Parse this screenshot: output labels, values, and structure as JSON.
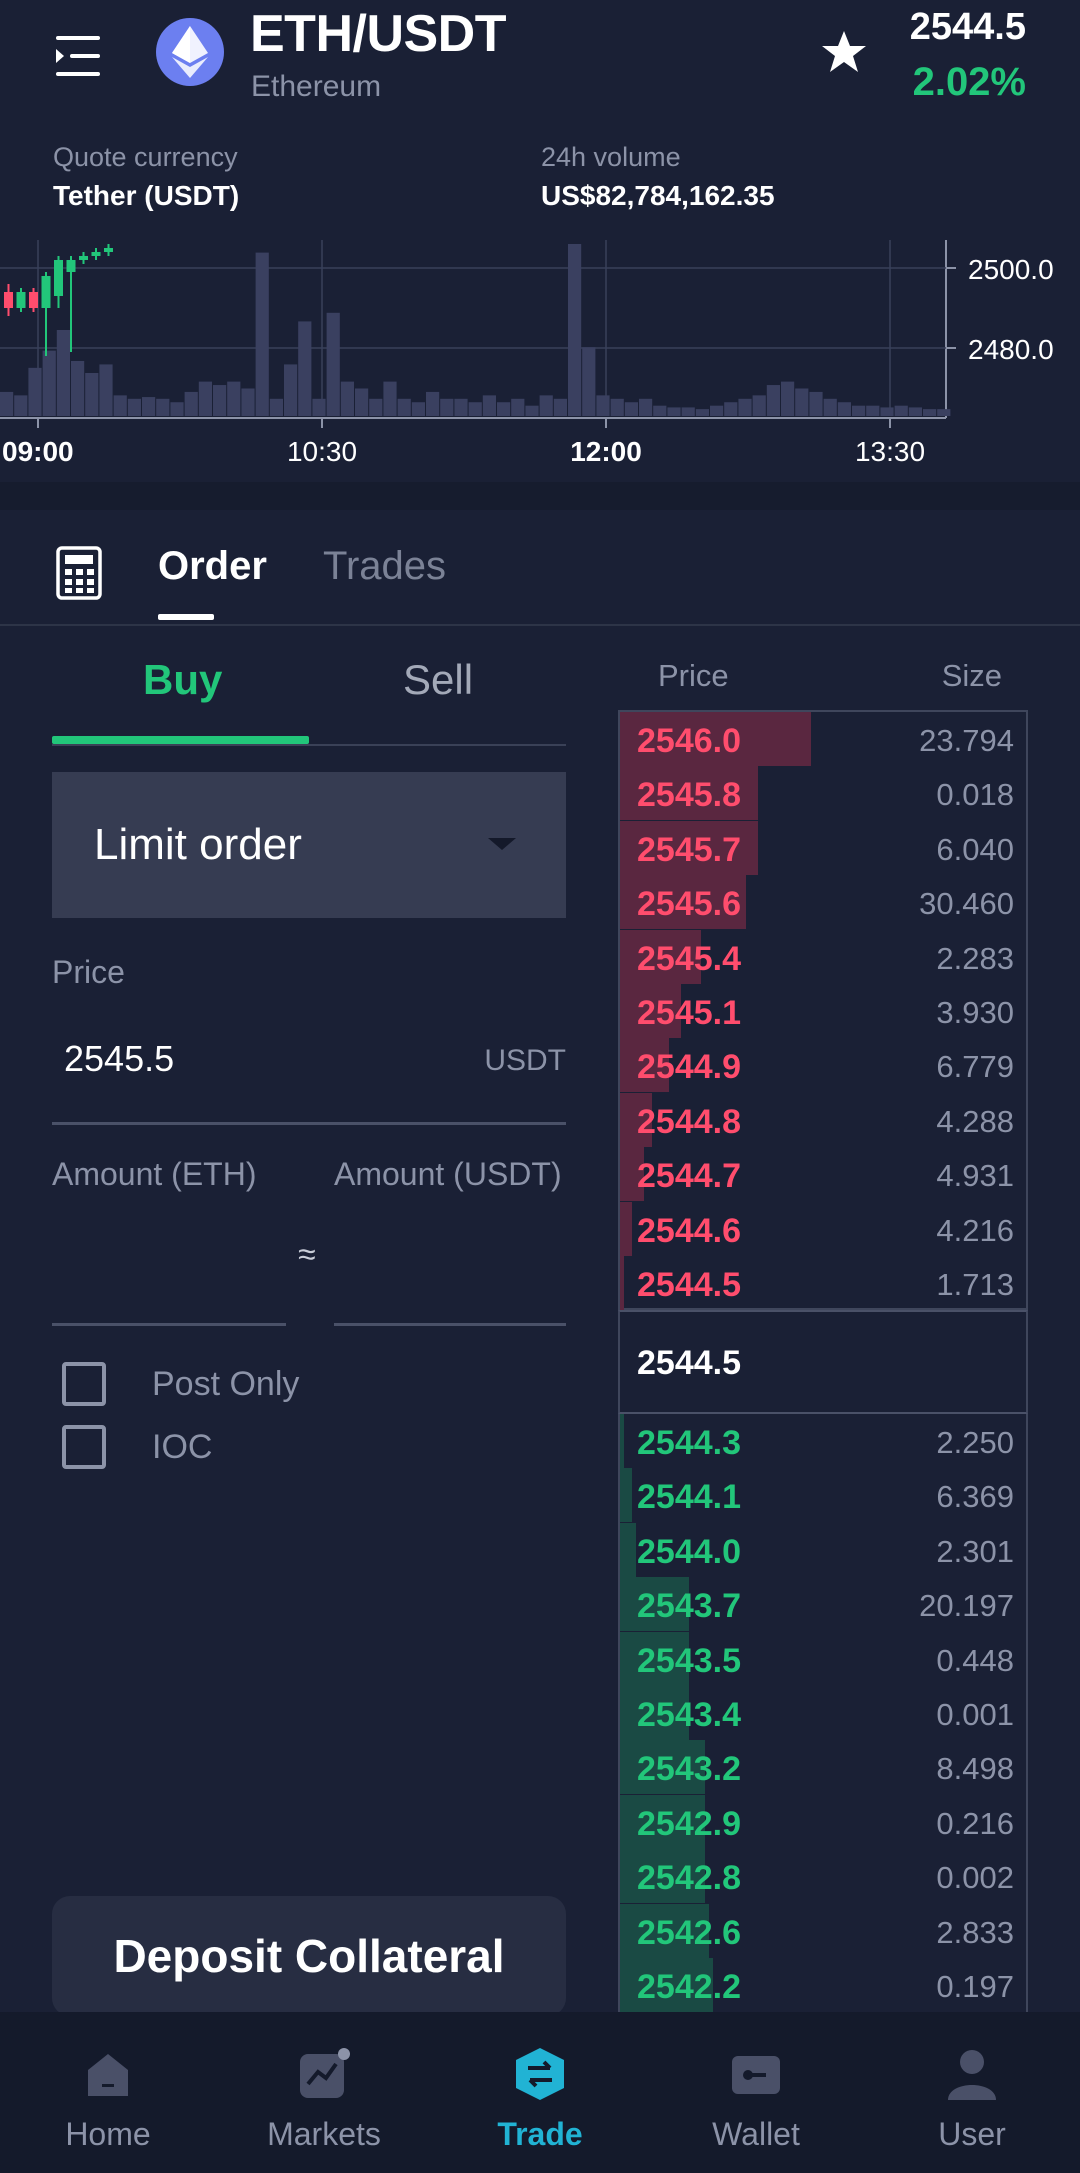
{
  "header": {
    "pair": "ETH/USDT",
    "asset_name": "Ethereum",
    "last_price": "2544.5",
    "change_pct": "2.02%",
    "icons": {
      "menu": "menu-icon",
      "logo": "ethereum-logo-icon",
      "favorite": "star-icon"
    }
  },
  "info": {
    "quote_label": "Quote currency",
    "quote_value": "Tether (USDT)",
    "volume_label": "24h volume",
    "volume_value": "US$82,784,162.35"
  },
  "chart_data": {
    "type": "bar",
    "x_ticks": [
      "09:00",
      "10:30",
      "12:00",
      "13:30"
    ],
    "bold_x_ticks": [
      "09:00",
      "12:00"
    ],
    "y_ticks": [
      "2500.0",
      "2480.0"
    ],
    "y_tick_values": [
      2500,
      2480
    ],
    "ylim": [
      2463,
      2507
    ],
    "candles": [
      {
        "o": 2494,
        "c": 2490,
        "h": 2496,
        "l": 2488
      },
      {
        "o": 2490,
        "c": 2494,
        "h": 2495,
        "l": 2489
      },
      {
        "o": 2494,
        "c": 2490,
        "h": 2495,
        "l": 2489
      },
      {
        "o": 2490,
        "c": 2498,
        "h": 2499,
        "l": 2478
      },
      {
        "o": 2493,
        "c": 2502,
        "h": 2503,
        "l": 2490
      },
      {
        "o": 2499,
        "c": 2502,
        "h": 2503,
        "l": 2479
      },
      {
        "o": 2502,
        "c": 2503,
        "h": 2504,
        "l": 2501
      },
      {
        "o": 2503,
        "c": 2504,
        "h": 2505,
        "l": 2502
      },
      {
        "o": 2504,
        "c": 2505,
        "h": 2506,
        "l": 2503
      }
    ],
    "volumes": [
      0.14,
      0.12,
      0.28,
      0.38,
      0.5,
      0.32,
      0.25,
      0.3,
      0.12,
      0.1,
      0.11,
      0.1,
      0.08,
      0.14,
      0.2,
      0.18,
      0.2,
      0.16,
      0.95,
      0.1,
      0.3,
      0.55,
      0.1,
      0.6,
      0.2,
      0.16,
      0.1,
      0.2,
      0.1,
      0.08,
      0.14,
      0.1,
      0.1,
      0.08,
      0.12,
      0.08,
      0.1,
      0.06,
      0.12,
      0.1,
      1.0,
      0.4,
      0.12,
      0.1,
      0.08,
      0.1,
      0.06,
      0.05,
      0.05,
      0.04,
      0.06,
      0.08,
      0.1,
      0.12,
      0.18,
      0.2,
      0.16,
      0.14,
      0.1,
      0.08,
      0.06,
      0.06,
      0.05,
      0.06,
      0.05,
      0.04,
      0.04
    ]
  },
  "tabs": {
    "order": "Order",
    "trades": "Trades"
  },
  "form": {
    "buy": "Buy",
    "sell": "Sell",
    "order_type": "Limit order",
    "price_label": "Price",
    "price_value": "2545.5",
    "price_unit": "USDT",
    "amount_eth_label": "Amount (ETH)",
    "amount_usdt_label": "Amount (USDT)",
    "approx": "≈",
    "post_only": "Post Only",
    "ioc": "IOC",
    "deposit": "Deposit Collateral"
  },
  "orderbook": {
    "price_header": "Price",
    "size_header": "Size",
    "mid_price": "2544.5",
    "asks": [
      {
        "price": "2546.0",
        "size": "23.794",
        "depth": 0.47
      },
      {
        "price": "2545.8",
        "size": "0.018",
        "depth": 0.34
      },
      {
        "price": "2545.7",
        "size": "6.040",
        "depth": 0.34
      },
      {
        "price": "2545.6",
        "size": "30.460",
        "depth": 0.31
      },
      {
        "price": "2545.4",
        "size": "2.283",
        "depth": 0.2
      },
      {
        "price": "2545.1",
        "size": "3.930",
        "depth": 0.15
      },
      {
        "price": "2544.9",
        "size": "6.779",
        "depth": 0.12
      },
      {
        "price": "2544.8",
        "size": "4.288",
        "depth": 0.08
      },
      {
        "price": "2544.7",
        "size": "4.931",
        "depth": 0.06
      },
      {
        "price": "2544.6",
        "size": "4.216",
        "depth": 0.03
      },
      {
        "price": "2544.5",
        "size": "1.713",
        "depth": 0.01
      }
    ],
    "bids": [
      {
        "price": "2544.3",
        "size": "2.250",
        "depth": 0.01
      },
      {
        "price": "2544.1",
        "size": "6.369",
        "depth": 0.03
      },
      {
        "price": "2544.0",
        "size": "2.301",
        "depth": 0.04
      },
      {
        "price": "2543.7",
        "size": "20.197",
        "depth": 0.17
      },
      {
        "price": "2543.5",
        "size": "0.448",
        "depth": 0.17
      },
      {
        "price": "2543.4",
        "size": "0.001",
        "depth": 0.17
      },
      {
        "price": "2543.2",
        "size": "8.498",
        "depth": 0.21
      },
      {
        "price": "2542.9",
        "size": "0.216",
        "depth": 0.21
      },
      {
        "price": "2542.8",
        "size": "0.002",
        "depth": 0.21
      },
      {
        "price": "2542.6",
        "size": "2.833",
        "depth": 0.22
      },
      {
        "price": "2542.2",
        "size": "0.197",
        "depth": 0.23
      }
    ]
  },
  "nav": [
    {
      "label": "Home",
      "icon": "home-icon"
    },
    {
      "label": "Markets",
      "icon": "markets-icon"
    },
    {
      "label": "Trade",
      "icon": "trade-icon",
      "active": true
    },
    {
      "label": "Wallet",
      "icon": "wallet-icon"
    },
    {
      "label": "User",
      "icon": "user-icon"
    }
  ]
}
